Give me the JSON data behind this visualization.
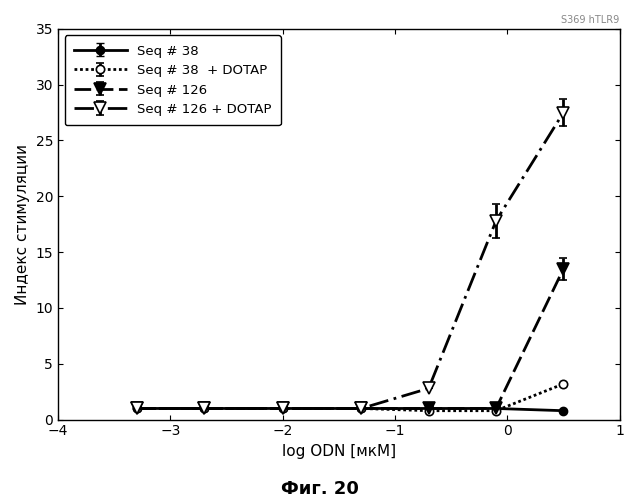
{
  "xlabel": "log ODN [мкМ]",
  "ylabel": "Индекс стимуляции",
  "caption": "Фиг. 20",
  "watermark": "S369 hTLR9",
  "xlim": [
    -4,
    1
  ],
  "ylim": [
    0,
    35
  ],
  "yticks": [
    0,
    5,
    10,
    15,
    20,
    25,
    30,
    35
  ],
  "xticks": [
    -4,
    -3,
    -2,
    -1,
    0,
    1
  ],
  "seq38_x": [
    -3.3,
    -2.7,
    -2.0,
    -1.3,
    -0.7,
    -0.1,
    0.5
  ],
  "seq38_y": [
    1.0,
    1.0,
    1.0,
    1.0,
    1.0,
    1.0,
    0.8
  ],
  "seq38_yerr": [
    0.0,
    0.0,
    0.0,
    0.0,
    0.0,
    0.0,
    0.0
  ],
  "seq38d_x": [
    -3.3,
    -2.7,
    -2.0,
    -1.3,
    -0.7,
    -0.1,
    0.5
  ],
  "seq38d_y": [
    1.0,
    1.0,
    1.0,
    1.0,
    0.8,
    0.8,
    3.2
  ],
  "seq38d_yerr": [
    0.0,
    0.0,
    0.0,
    0.0,
    0.0,
    0.0,
    0.0
  ],
  "seq126_x": [
    -3.3,
    -2.7,
    -2.0,
    -1.3,
    -0.7,
    -0.1,
    0.5
  ],
  "seq126_y": [
    1.0,
    1.0,
    1.0,
    1.0,
    1.0,
    1.0,
    13.5
  ],
  "seq126_yerr": [
    0.0,
    0.0,
    0.0,
    0.0,
    0.0,
    0.0,
    1.0
  ],
  "seq126d_x": [
    -3.3,
    -2.7,
    -2.0,
    -1.3,
    -0.7,
    -0.1,
    0.5
  ],
  "seq126d_y": [
    1.0,
    1.0,
    1.0,
    1.0,
    2.8,
    17.8,
    27.5
  ],
  "seq126d_yerr": [
    0.0,
    0.0,
    0.0,
    0.0,
    0.0,
    1.5,
    1.2
  ],
  "legend_labels": [
    "Seq # 38",
    "Seq # 38  + DOTAP",
    "Seq # 126",
    "Seq # 126 + DOTAP"
  ],
  "bg_color": "white"
}
